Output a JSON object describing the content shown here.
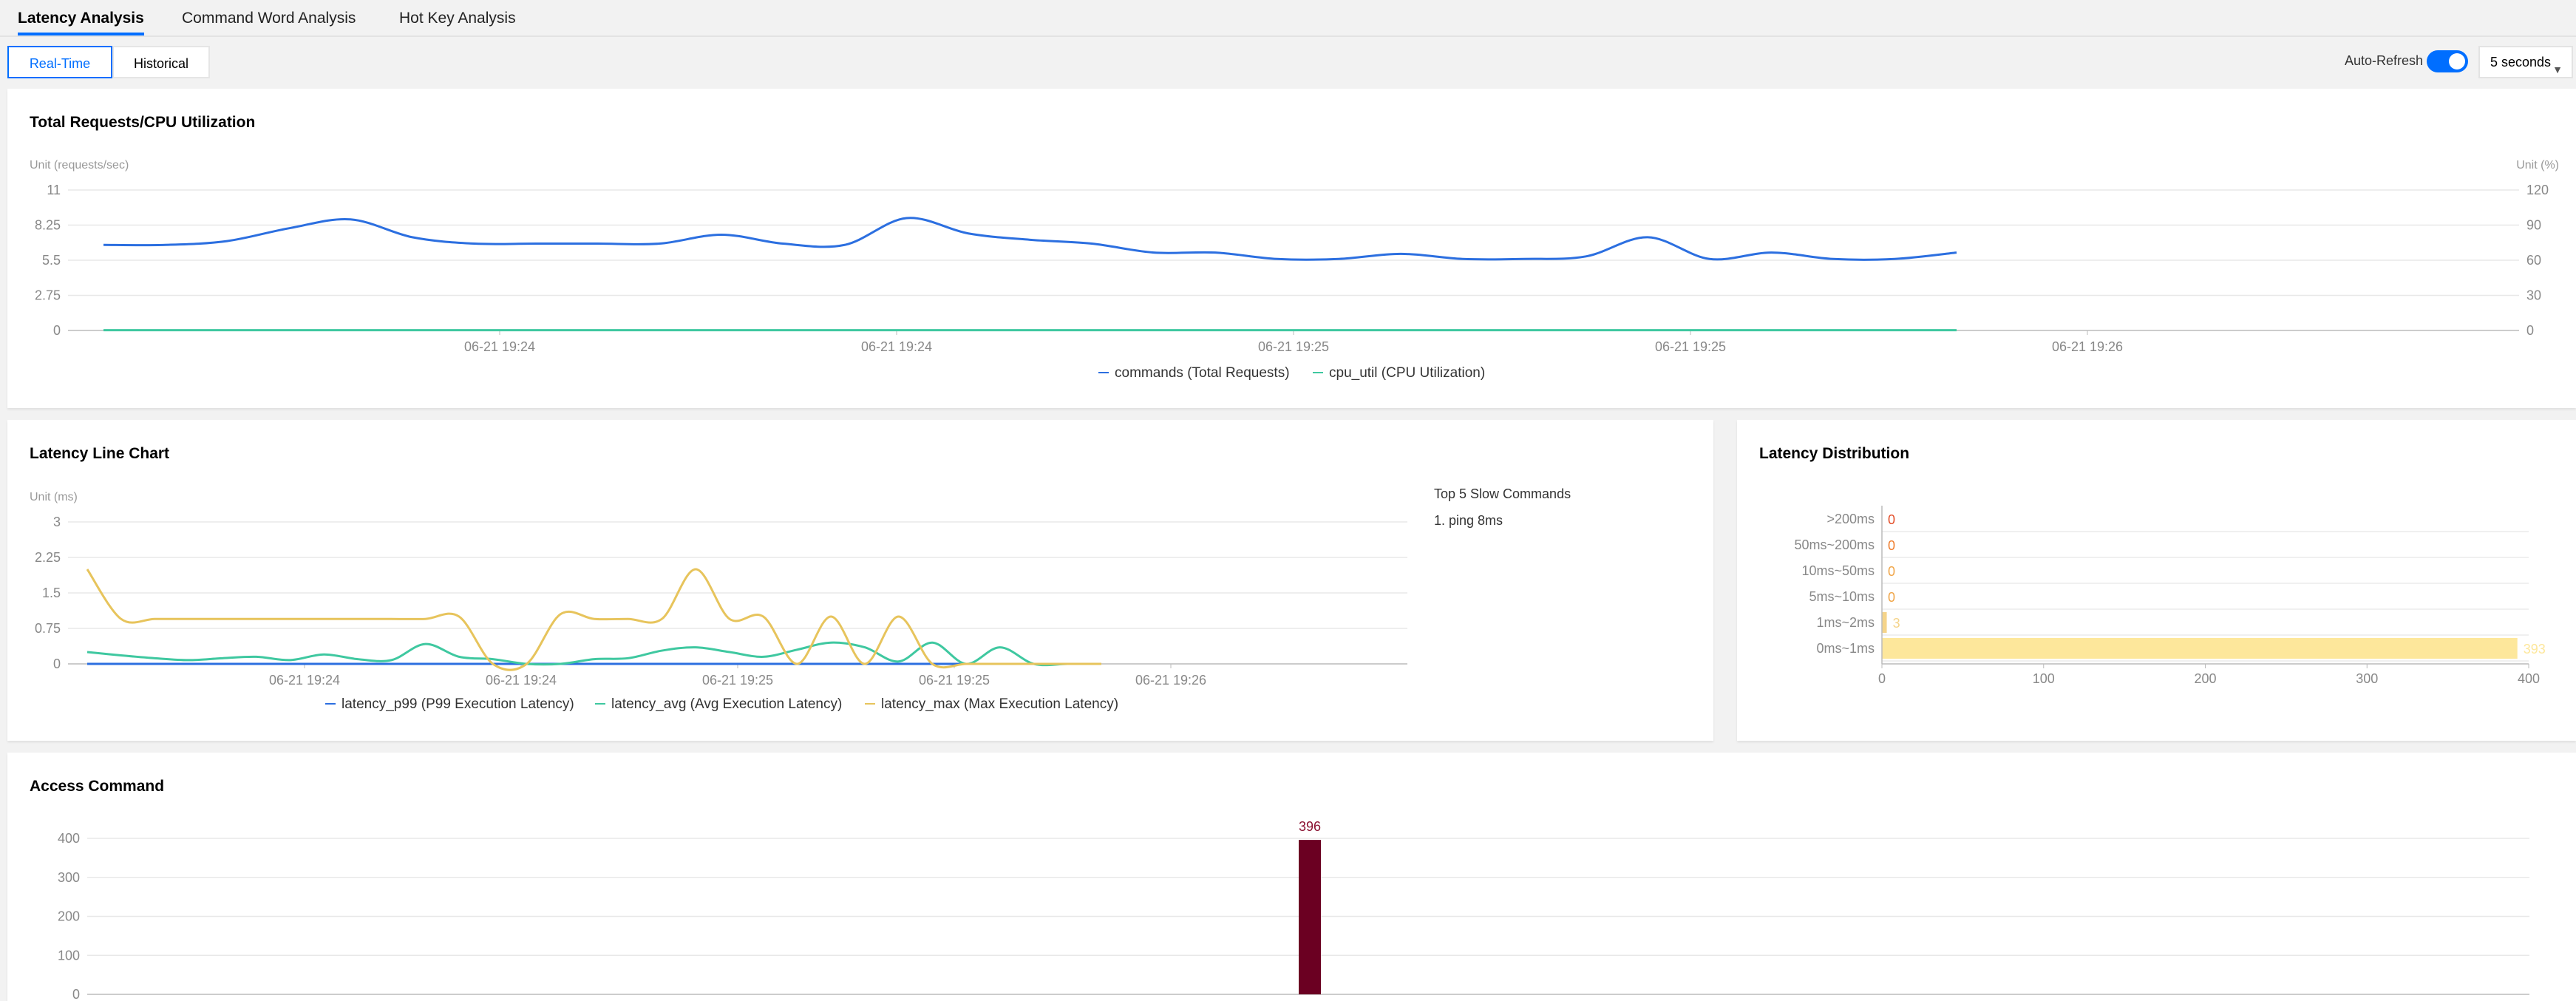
{
  "tabs": [
    {
      "label": "Latency Analysis",
      "active": true
    },
    {
      "label": "Command Word Analysis",
      "active": false
    },
    {
      "label": "Hot Key Analysis",
      "active": false
    }
  ],
  "toolbar": {
    "mode_options": [
      {
        "label": "Real-Time",
        "active": true
      },
      {
        "label": "Historical",
        "active": false
      }
    ],
    "auto_refresh_label": "Auto-Refresh",
    "auto_refresh_on": true,
    "interval_value": "5 seconds",
    "accent_color": "#006eff"
  },
  "requests_panel": {
    "title": "Total Requests/CPU Utilization"
  },
  "latency_panel": {
    "title": "Latency Line Chart",
    "slow_title": "Top 5 Slow Commands",
    "slow_items": [
      "1. ping 8ms"
    ]
  },
  "distribution_panel": {
    "title": "Latency Distribution"
  },
  "access_panel": {
    "title": "Access Command"
  },
  "chart_data": [
    {
      "id": "requests",
      "type": "line",
      "y_left_label": "Unit (requests/sec)",
      "y_right_label": "Unit (%)",
      "y_left_ticks": [
        "11",
        "8.25",
        "5.5",
        "2.75",
        "0"
      ],
      "y_right_ticks": [
        "120",
        "90",
        "60",
        "30",
        "0"
      ],
      "ylim_left": [
        0,
        11
      ],
      "ylim_right": [
        0,
        120
      ],
      "x_tick_labels": [
        "06-21 19:24",
        "06-21 19:24",
        "06-21 19:25",
        "06-21 19:25",
        "06-21 19:26"
      ],
      "legend_position": "bottom",
      "series": [
        {
          "name": "commands (Total Requests)",
          "color": "#2c6fe0",
          "axis": "left",
          "values": [
            6.7,
            6.7,
            7.0,
            8.0,
            8.7,
            7.3,
            6.8,
            6.8,
            6.8,
            6.8,
            7.5,
            6.8,
            6.7,
            8.8,
            7.6,
            7.1,
            6.8,
            6.1,
            6.1,
            5.6,
            5.6,
            6.0,
            5.6,
            5.6,
            5.8,
            7.3,
            5.6,
            6.1,
            5.6,
            5.6,
            6.1
          ]
        },
        {
          "name": "cpu_util (CPU Utilization)",
          "color": "#3fc8a0",
          "axis": "right",
          "values": [
            0.2,
            0.2,
            0.2,
            0.2,
            0.2,
            0.2,
            0.2,
            0.2,
            0.2,
            0.2,
            0.2,
            0.2,
            0.2,
            0.2,
            0.2,
            0.2,
            0.2,
            0.2,
            0.2,
            0.2,
            0.2,
            0.2,
            0.2,
            0.2,
            0.2,
            0.2,
            0.2,
            0.2,
            0.2,
            0.2,
            0.2
          ]
        }
      ]
    },
    {
      "id": "latency",
      "type": "line",
      "y_label": "Unit (ms)",
      "y_ticks": [
        "3",
        "2.25",
        "1.5",
        "0.75",
        "0"
      ],
      "ylim": [
        0,
        3
      ],
      "x_tick_labels": [
        "06-21 19:24",
        "06-21 19:24",
        "06-21 19:25",
        "06-21 19:25",
        "06-21 19:26"
      ],
      "legend_position": "bottom",
      "series": [
        {
          "name": "latency_p99 (P99 Execution Latency)",
          "color": "#2c6fe0",
          "values": [
            0,
            0,
            0,
            0,
            0,
            0,
            0,
            0,
            0,
            0,
            0,
            0,
            0,
            0,
            0,
            0,
            0,
            0,
            0,
            0,
            0,
            0,
            0,
            0,
            0,
            0,
            0,
            0,
            0,
            0,
            0
          ]
        },
        {
          "name": "latency_avg (Avg Execution Latency)",
          "color": "#3fc8a0",
          "values": [
            0.25,
            0.18,
            0.12,
            0.08,
            0.12,
            0.15,
            0.08,
            0.2,
            0.1,
            0.08,
            0.42,
            0.15,
            0.1,
            0.0,
            0.0,
            0.1,
            0.12,
            0.28,
            0.35,
            0.25,
            0.15,
            0.3,
            0.45,
            0.35,
            0.05,
            0.45,
            0.0,
            0.35,
            0.0,
            0.0,
            0.0
          ]
        },
        {
          "name": "latency_max (Max Execution Latency)",
          "color": "#e7c45c",
          "values": [
            2.0,
            0.95,
            0.95,
            0.95,
            0.95,
            0.95,
            0.95,
            0.95,
            0.95,
            0.95,
            0.95,
            1.0,
            0.0,
            0.0,
            1.05,
            0.95,
            0.95,
            0.95,
            2.0,
            0.95,
            1.0,
            0.0,
            1.0,
            0.0,
            1.0,
            0.0,
            0.0,
            0.0,
            0.0,
            0.0,
            0.0
          ]
        }
      ]
    },
    {
      "id": "distribution",
      "type": "bar",
      "orientation": "horizontal",
      "categories": [
        ">200ms",
        "50ms~200ms",
        "10ms~50ms",
        "5ms~10ms",
        "1ms~2ms",
        "0ms~1ms"
      ],
      "values": [
        0,
        0,
        0,
        0,
        3,
        393
      ],
      "value_colors": [
        "#e34d28",
        "#f07d2d",
        "#f0a547",
        "#f0a547",
        "#f5d48a",
        "#fde79b"
      ],
      "bar_color": "#fde79b",
      "x_ticks": [
        "0",
        "100",
        "200",
        "300",
        "400"
      ],
      "xlim": [
        0,
        400
      ]
    },
    {
      "id": "access",
      "type": "bar",
      "y_ticks": [
        "400",
        "300",
        "200",
        "100",
        "0"
      ],
      "ylim": [
        0,
        400
      ],
      "bar_color": "#6b0022",
      "values": [
        396
      ],
      "value_labels": [
        "396"
      ]
    }
  ]
}
